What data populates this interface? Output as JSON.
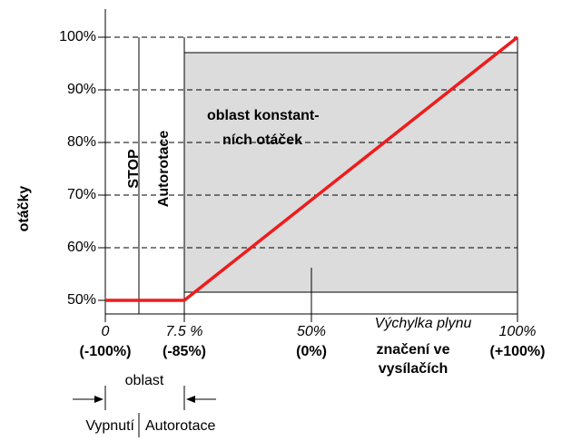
{
  "chart_data": {
    "type": "line",
    "ylabel": "otáčky",
    "x": [
      0,
      7.5,
      100
    ],
    "series": [
      {
        "name": "otáčky",
        "color": "#ee1c1c",
        "values": [
          50,
          50,
          100
        ]
      }
    ],
    "xlim": [
      0,
      100
    ],
    "xticks": [
      0,
      {
        "value": 7.5,
        "label": "7.5 %"
      },
      {
        "value": 50,
        "label": "50%"
      },
      {
        "value": 100,
        "label": "100%"
      }
    ],
    "xtick_sublabels": [
      "(-100%)",
      "(-85%)",
      "(0%)",
      "(+100%)"
    ],
    "ylim": [
      50,
      100
    ],
    "yticks": [
      {
        "value": 50,
        "label": "50%"
      },
      {
        "value": 60,
        "label": "60%"
      },
      {
        "value": 70,
        "label": "70%"
      },
      {
        "value": 80,
        "label": "80%"
      },
      {
        "value": 90,
        "label": "90%"
      },
      {
        "value": 100,
        "label": "100%"
      }
    ],
    "grid": true,
    "annotations": {
      "stop": "STOP",
      "autorotation": "Autorotace",
      "constant_region": [
        "oblast konstant-",
        "ních otáček"
      ],
      "throttle": "Výchylka plynu",
      "marking": [
        "značení ve",
        "vysílačích"
      ],
      "region": "oblast",
      "off": "Vypnutí",
      "autorotation_bottom": "Autorotace"
    }
  }
}
